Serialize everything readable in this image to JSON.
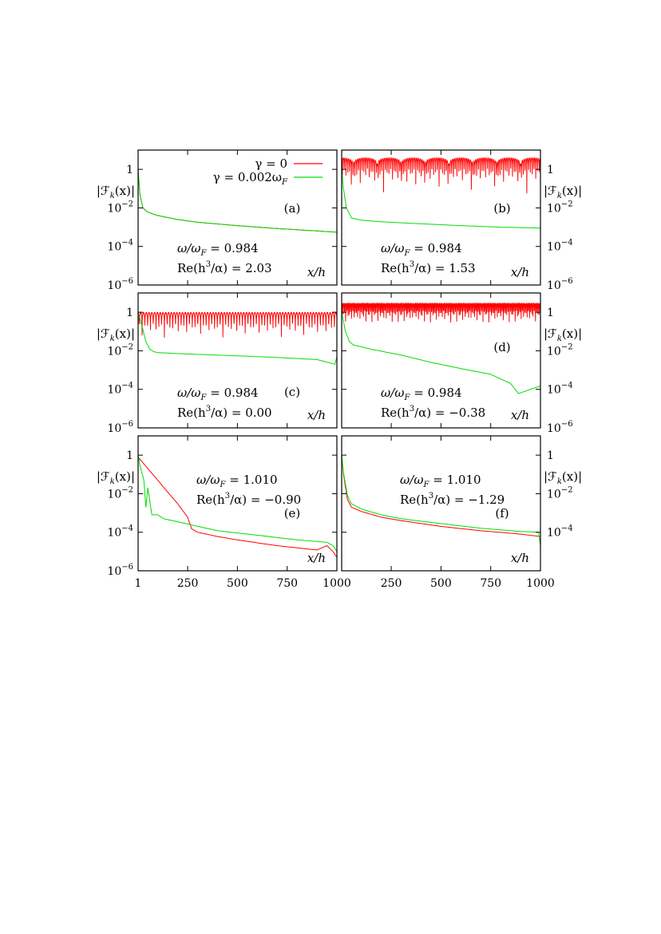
{
  "legend": {
    "entries": [
      {
        "label": "γ = 0",
        "color": "#ff0000"
      },
      {
        "label": "γ = 0.002ω",
        "sub": "F",
        "color": "#00dd00"
      }
    ],
    "placement": "panel (a), top-right"
  },
  "y_axis_label": {
    "main": "|ℱ",
    "sub": "k",
    "tail": "(x)|"
  },
  "x_axis_label": "x/h",
  "chart_data": [
    {
      "type": "line",
      "panel": "(a)",
      "xlabel": "x/h",
      "ylabel": "|ℱk(x)|",
      "yscale": "log",
      "xlim": [
        1,
        1000
      ],
      "ylim": [
        1e-06,
        10
      ],
      "yticks": [
        "1",
        "10^-2",
        "10^-4",
        "10^-6"
      ],
      "annotations": [
        {
          "lhs": "ω/ω",
          "sub": "F",
          "rhs": " = 0.984"
        },
        {
          "lhs": "Re(h",
          "sup": "3",
          "rhs": "/α) = 2.03"
        }
      ],
      "series": [
        {
          "name": "γ = 0",
          "color": "#ff0000",
          "x": [
            1,
            10,
            25,
            50,
            100,
            200,
            300,
            500,
            700,
            1000
          ],
          "y": [
            1.0,
            0.05,
            0.01,
            0.006,
            0.004,
            0.0025,
            0.0018,
            0.0012,
            0.00085,
            0.00055
          ]
        },
        {
          "name": "γ = 0.002ωF",
          "color": "#00dd00",
          "x": [
            1,
            10,
            25,
            50,
            100,
            200,
            300,
            500,
            700,
            1000
          ],
          "y": [
            1.0,
            0.05,
            0.01,
            0.006,
            0.004,
            0.0025,
            0.0018,
            0.0012,
            0.00085,
            0.00055
          ]
        }
      ]
    },
    {
      "type": "line",
      "panel": "(b)",
      "xlabel": "x/h",
      "ylabel": "|ℱk(x)|",
      "yscale": "log",
      "xlim": [
        1,
        1000
      ],
      "ylim": [
        1e-06,
        10
      ],
      "yticks": [
        "1",
        "10^-2",
        "10^-4",
        "10^-6"
      ],
      "annotations": [
        {
          "lhs": "ω/ω",
          "sub": "F",
          "rhs": " = 0.984"
        },
        {
          "lhs": "Re(h",
          "sup": "3",
          "rhs": "/α) = 1.53"
        }
      ],
      "series": [
        {
          "name": "γ = 0",
          "color": "#ff0000",
          "envelope": [
            4.0,
            4.0
          ],
          "dip_floor": 0.02,
          "period_x": 120,
          "fast_period_x": 9
        },
        {
          "name": "γ = 0.002ωF",
          "color": "#00dd00",
          "x": [
            1,
            10,
            25,
            50,
            100,
            200,
            400,
            600,
            800,
            1000
          ],
          "y": [
            1.0,
            0.1,
            0.01,
            0.003,
            0.0023,
            0.0019,
            0.0015,
            0.0012,
            0.001,
            0.0009
          ]
        }
      ]
    },
    {
      "type": "line",
      "panel": "(c)",
      "xlabel": "x/h",
      "ylabel": "|ℱk(x)|",
      "yscale": "log",
      "xlim": [
        1,
        1000
      ],
      "ylim": [
        1e-06,
        10
      ],
      "yticks": [
        "1",
        "10^-2",
        "10^-4",
        "10^-6"
      ],
      "annotations": [
        {
          "lhs": "ω/ω",
          "sub": "F",
          "rhs": " = 0.984"
        },
        {
          "lhs": "Re(h",
          "sup": "3",
          "rhs": "/α) = 0.00"
        }
      ],
      "series": [
        {
          "name": "γ = 0",
          "color": "#ff0000",
          "envelope": [
            1.0,
            1.0
          ],
          "dip_floor": 0.06,
          "period_x": 14
        },
        {
          "name": "γ = 0.002ωF",
          "color": "#00dd00",
          "x": [
            1,
            20,
            40,
            60,
            80,
            100,
            300,
            500,
            700,
            900,
            990,
            1000
          ],
          "y": [
            1.0,
            0.2,
            0.03,
            0.012,
            0.009,
            0.008,
            0.0065,
            0.0055,
            0.0045,
            0.0035,
            0.002,
            0.005
          ]
        }
      ]
    },
    {
      "type": "line",
      "panel": "(d)",
      "xlabel": "x/h",
      "ylabel": "|ℱk(x)|",
      "yscale": "log",
      "xlim": [
        1,
        1000
      ],
      "ylim": [
        1e-06,
        10
      ],
      "yticks": [
        "1",
        "10^-2",
        "10^-4",
        "10^-6"
      ],
      "annotations": [
        {
          "lhs": "ω/ω",
          "sub": "F",
          "rhs": " = 0.984"
        },
        {
          "lhs": "Re(h",
          "sup": "3",
          "rhs": "/α) = −0.38"
        }
      ],
      "series": [
        {
          "name": "γ = 0",
          "color": "#ff0000",
          "envelope": [
            3.0,
            3.0
          ],
          "dip_floor": 0.35,
          "period_x": 6
        },
        {
          "name": "γ = 0.002ωF",
          "color": "#00dd00",
          "x": [
            1,
            20,
            40,
            60,
            80,
            150,
            300,
            450,
            600,
            750,
            850,
            890,
            950,
            1000
          ],
          "y": [
            1.0,
            0.1,
            0.03,
            0.02,
            0.018,
            0.012,
            0.006,
            0.0025,
            0.0012,
            0.0006,
            0.0002,
            6e-05,
            0.0001,
            0.00015
          ]
        }
      ]
    },
    {
      "type": "line",
      "panel": "(e)",
      "xlabel": "x/h",
      "ylabel": "|ℱk(x)|",
      "yscale": "log",
      "xlim": [
        1,
        1000
      ],
      "ylim": [
        1e-06,
        10
      ],
      "xticks": [
        "1",
        "250",
        "500",
        "750",
        "1000"
      ],
      "yticks": [
        "1",
        "10^-2",
        "10^-4",
        "10^-6"
      ],
      "annotations": [
        {
          "lhs": "ω/ω",
          "sub": "F",
          "rhs": " = 1.010"
        },
        {
          "lhs": "Re(h",
          "sup": "3",
          "rhs": "/α) = −0.90"
        }
      ],
      "series": [
        {
          "name": "γ = 0",
          "color": "#ff0000",
          "x": [
            1,
            50,
            100,
            150,
            200,
            250,
            270,
            300,
            400,
            500,
            700,
            900,
            950,
            980,
            1000
          ],
          "y": [
            0.8,
            0.2,
            0.05,
            0.012,
            0.003,
            0.0006,
            0.00015,
            0.0001,
            6e-05,
            4e-05,
            2e-05,
            1.2e-05,
            2e-05,
            1e-05,
            5e-06
          ]
        },
        {
          "name": "γ = 0.002ωF",
          "color": "#00dd00",
          "x": [
            1,
            10,
            30,
            40,
            50,
            70,
            100,
            130,
            200,
            400,
            600,
            800,
            950,
            980,
            1000
          ],
          "y": [
            1.0,
            0.3,
            0.05,
            0.002,
            0.02,
            0.0008,
            0.0008,
            0.0005,
            0.00035,
            0.00012,
            7e-05,
            4e-05,
            3e-05,
            2e-05,
            1e-05
          ]
        }
      ]
    },
    {
      "type": "line",
      "panel": "(f)",
      "xlabel": "x/h",
      "ylabel": "|ℱk(x)|",
      "yscale": "log",
      "xlim": [
        1,
        1000
      ],
      "ylim": [
        1e-06,
        10
      ],
      "xticks": [
        "250",
        "500",
        "750",
        "1000"
      ],
      "yticks": [
        "1",
        "10^-2",
        "10^-4"
      ],
      "annotations": [
        {
          "lhs": "ω/ω",
          "sub": "F",
          "rhs": " = 1.010"
        },
        {
          "lhs": "Re(h",
          "sup": "3",
          "rhs": "/α) = −1.29"
        }
      ],
      "series": [
        {
          "name": "γ = 0",
          "color": "#ff0000",
          "x": [
            1,
            10,
            30,
            50,
            100,
            200,
            300,
            500,
            700,
            900,
            1000
          ],
          "y": [
            1.0,
            0.1,
            0.005,
            0.002,
            0.0012,
            0.0006,
            0.0004,
            0.0002,
            0.00012,
            8e-05,
            6e-05
          ]
        },
        {
          "name": "γ = 0.002ωF",
          "color": "#00dd00",
          "x": [
            1,
            10,
            30,
            50,
            100,
            200,
            300,
            500,
            700,
            900,
            990,
            1000
          ],
          "y": [
            1.0,
            0.12,
            0.008,
            0.003,
            0.0016,
            0.0008,
            0.0005,
            0.00028,
            0.00016,
            0.00011,
            0.0001,
            2e-05
          ]
        }
      ]
    }
  ]
}
